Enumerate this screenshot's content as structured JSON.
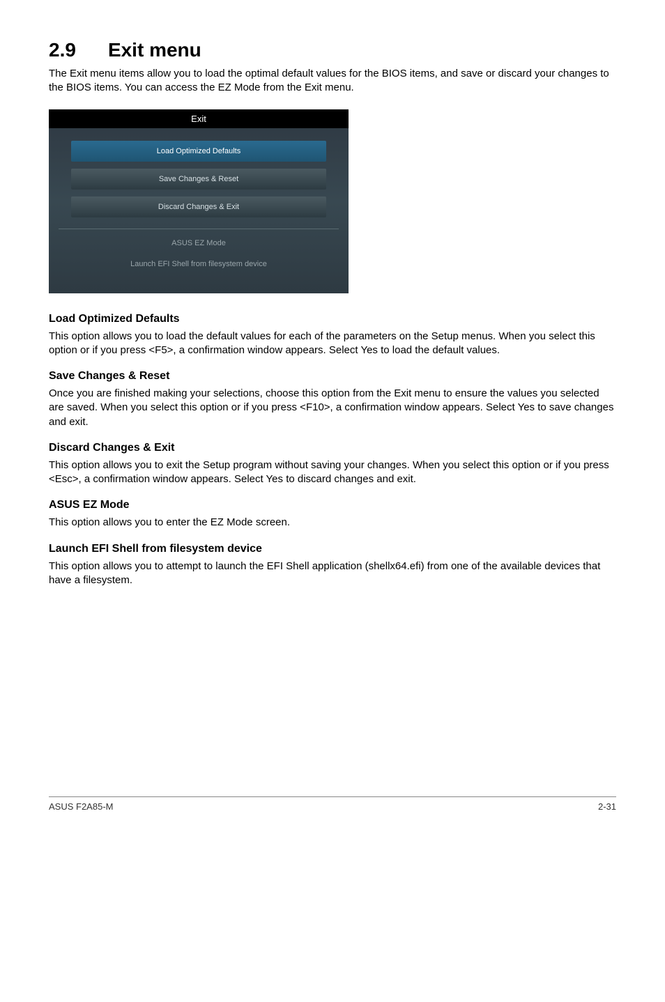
{
  "section": {
    "number": "2.9",
    "title": "Exit menu",
    "intro": "The Exit menu items allow you to load the optimal default values for the BIOS items, and save or discard your changes to the BIOS items. You can access the EZ Mode from the Exit menu."
  },
  "bios_menu": {
    "header": "Exit",
    "buttons": [
      {
        "label": "Load Optimized Defaults",
        "selected": true
      },
      {
        "label": "Save Changes & Reset",
        "selected": false
      },
      {
        "label": "Discard Changes & Exit",
        "selected": false
      }
    ],
    "text_items": [
      "ASUS EZ Mode",
      "Launch EFI Shell from filesystem device"
    ],
    "colors": {
      "menu_bg_top": "#2e3842",
      "menu_bg_mid": "#384851",
      "header_bg": "#000000",
      "btn_bg_top": "#4a5a61",
      "btn_bg_bottom": "#2d3b42",
      "btn_selected_top": "#2a6a8f",
      "btn_selected_bottom": "#1f5573",
      "text_muted": "#9aa6ab",
      "divider": "#5a6a72"
    }
  },
  "sections": [
    {
      "heading": "Load Optimized Defaults",
      "body": "This option allows you to load the default values for each of the parameters on the Setup menus. When you select this option or if you press <F5>, a confirmation window appears. Select Yes to load the default values."
    },
    {
      "heading": "Save Changes & Reset",
      "body": "Once you are finished making your selections, choose this option from the Exit menu to ensure the values you selected are saved. When you select this option or if you press <F10>, a confirmation window appears. Select Yes to save changes and exit."
    },
    {
      "heading": "Discard Changes & Exit",
      "body": "This option allows you to exit the Setup program without saving your changes. When you select this option or if you press <Esc>, a confirmation window appears. Select Yes to discard changes and exit."
    },
    {
      "heading": "ASUS EZ Mode",
      "body": "This option allows you to enter the EZ Mode screen."
    },
    {
      "heading": "Launch EFI Shell from filesystem device",
      "body": "This option allows you to attempt to launch the EFI Shell application (shellx64.efi) from one of the available devices that have a filesystem."
    }
  ],
  "footer": {
    "left": "ASUS F2A85-M",
    "right": "2-31"
  }
}
